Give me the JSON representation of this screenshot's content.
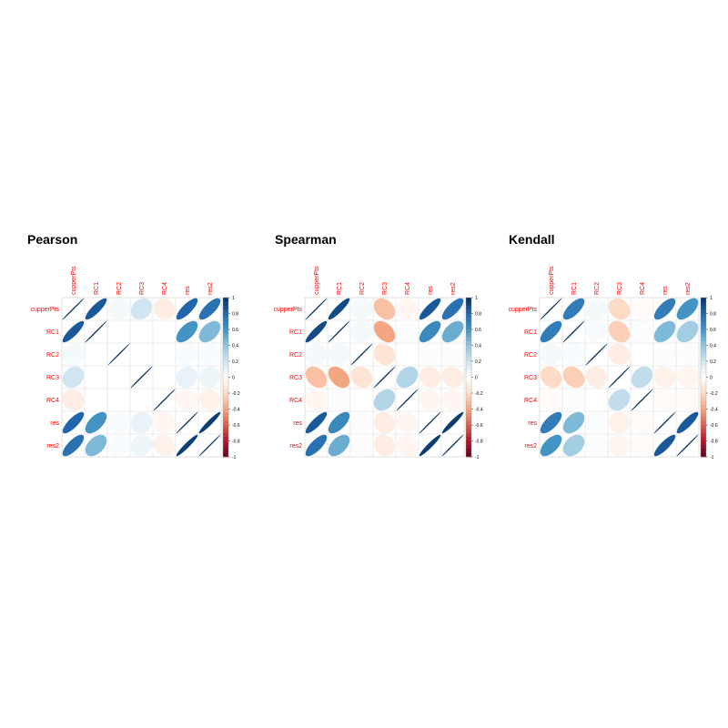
{
  "chart_data": [
    {
      "type": "heatmap",
      "subtype": "correlation-ellipse-matrix",
      "title": "Pearson",
      "variables": [
        "cupperPts",
        "RC1",
        "RC2",
        "RC3",
        "RC4",
        "res",
        "res2"
      ],
      "matrix": [
        [
          1.0,
          0.85,
          0.05,
          0.2,
          -0.1,
          0.8,
          0.75
        ],
        [
          0.85,
          1.0,
          0.0,
          0.0,
          0.0,
          0.6,
          0.45
        ],
        [
          0.05,
          0.0,
          1.0,
          0.0,
          0.0,
          0.03,
          0.03
        ],
        [
          0.2,
          0.0,
          0.0,
          1.0,
          0.0,
          0.1,
          0.08
        ],
        [
          -0.1,
          0.0,
          0.0,
          0.0,
          1.0,
          -0.05,
          -0.08
        ],
        [
          0.8,
          0.6,
          0.03,
          0.1,
          -0.05,
          1.0,
          0.95
        ],
        [
          0.75,
          0.45,
          0.03,
          0.08,
          -0.08,
          0.95,
          1.0
        ]
      ],
      "colorbar": {
        "range": [
          -1,
          1
        ],
        "ticks": [
          "1",
          "0.8",
          "0.6",
          "0.4",
          "0.2",
          "0",
          "-0.2",
          "-0.4",
          "-0.6",
          "-0.8",
          "-1"
        ]
      },
      "label_color": "#FF0000"
    },
    {
      "type": "heatmap",
      "subtype": "correlation-ellipse-matrix",
      "title": "Spearman",
      "variables": [
        "cupperPts",
        "RC1",
        "RC2",
        "RC3",
        "RC4",
        "res",
        "res2"
      ],
      "matrix": [
        [
          1.0,
          0.9,
          0.05,
          -0.3,
          -0.05,
          0.85,
          0.75
        ],
        [
          0.9,
          1.0,
          0.05,
          -0.4,
          0.02,
          0.65,
          0.5
        ],
        [
          0.05,
          0.05,
          1.0,
          -0.15,
          0.0,
          0.02,
          0.02
        ],
        [
          -0.3,
          -0.4,
          -0.15,
          1.0,
          0.3,
          -0.1,
          -0.1
        ],
        [
          -0.05,
          0.02,
          0.0,
          0.3,
          1.0,
          -0.05,
          -0.05
        ],
        [
          0.85,
          0.65,
          0.02,
          -0.1,
          -0.05,
          1.0,
          0.95
        ],
        [
          0.75,
          0.5,
          0.02,
          -0.1,
          -0.05,
          0.95,
          1.0
        ]
      ],
      "colorbar": {
        "range": [
          -1,
          1
        ],
        "ticks": [
          "1",
          "0.8",
          "0.6",
          "0.4",
          "0.2",
          "0",
          "-0.2",
          "-0.4",
          "-0.6",
          "-0.8",
          "-1"
        ]
      },
      "label_color": "#FF0000"
    },
    {
      "type": "heatmap",
      "subtype": "correlation-ellipse-matrix",
      "title": "Kendall",
      "variables": [
        "cupperPts",
        "RC1",
        "RC2",
        "RC3",
        "RC4",
        "res",
        "res2"
      ],
      "matrix": [
        [
          1.0,
          0.7,
          0.05,
          -0.2,
          -0.03,
          0.7,
          0.6
        ],
        [
          0.7,
          1.0,
          0.03,
          -0.25,
          0.02,
          0.45,
          0.35
        ],
        [
          0.05,
          0.03,
          1.0,
          -0.1,
          0.0,
          0.02,
          0.02
        ],
        [
          -0.2,
          -0.25,
          -0.1,
          1.0,
          0.25,
          -0.08,
          -0.05
        ],
        [
          -0.03,
          0.02,
          0.0,
          0.25,
          1.0,
          -0.03,
          -0.03
        ],
        [
          0.7,
          0.45,
          0.02,
          -0.08,
          -0.03,
          1.0,
          0.85
        ],
        [
          0.6,
          0.35,
          0.02,
          -0.05,
          -0.03,
          0.85,
          1.0
        ]
      ],
      "colorbar": {
        "range": [
          -1,
          1
        ],
        "ticks": [
          "1",
          "0.8",
          "0.6",
          "0.4",
          "0.2",
          "0",
          "-0.2",
          "-0.4",
          "-0.6",
          "-0.8",
          "-1"
        ]
      },
      "label_color": "#FF0000"
    }
  ]
}
